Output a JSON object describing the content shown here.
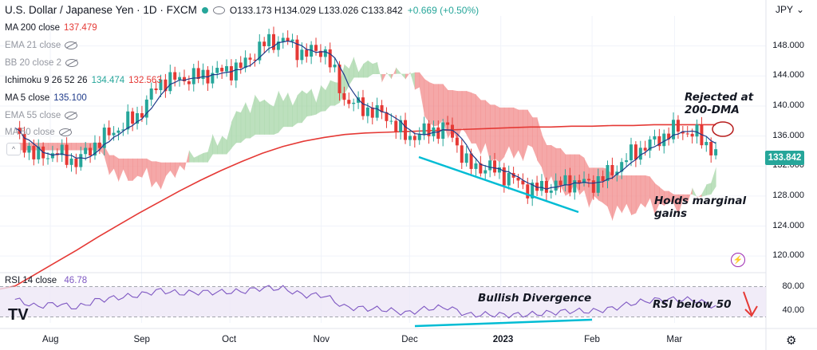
{
  "header": {
    "symbol": "U.S. Dollar / Japanese Yen · 1D · FXCM",
    "ohlc": "O133.173 H134.029 L133.026 C133.842",
    "change": "+0.669 (+0.50%)"
  },
  "indicators": [
    {
      "label": "MA 200 close",
      "value": "137.479",
      "color": "#e53935",
      "hidden": false
    },
    {
      "label": "EMA 21 close",
      "value": "",
      "color": "#9598a1",
      "hidden": true
    },
    {
      "label": "BB 20 close 2",
      "value": "",
      "color": "#9598a1",
      "hidden": true
    },
    {
      "label": "Ichimoku 9 26 52 26",
      "value": "134.474",
      "value2": "132.563",
      "color": "#26a69a",
      "color2": "#e53935",
      "hidden": false
    },
    {
      "label": "MA 5 close",
      "value": "135.100",
      "color": "#1e3a8a",
      "hidden": false
    },
    {
      "label": "EMA 55 close",
      "value": "",
      "color": "#9598a1",
      "hidden": true
    },
    {
      "label": "MA 50 close",
      "value": "",
      "color": "#9598a1",
      "hidden": true
    }
  ],
  "rsi": {
    "label": "RSI 14 close",
    "value": "46.78",
    "color": "#7e57c2"
  },
  "axis": {
    "unit": "JPY",
    "price_ticks": [
      "148.000",
      "144.000",
      "140.000",
      "136.000",
      "132.000",
      "128.000",
      "124.000",
      "120.000"
    ],
    "rsi_ticks": [
      "80.00",
      "40.00"
    ],
    "months": [
      "Aug",
      "Sep",
      "Oct",
      "Nov",
      "Dec",
      "2023",
      "Feb",
      "Mar"
    ],
    "last_price": "133.842"
  },
  "annotations": {
    "rejected": "Rejected at\n200-DMA",
    "holds": "Holds marginal\ngains",
    "bullish": "Bullish Divergence",
    "rsi_below": "RSI below 50"
  },
  "chart_data": {
    "type": "candlestick",
    "title": "U.S. Dollar / Japanese Yen · 1D · FXCM",
    "ylim": [
      118,
      152
    ],
    "rsi_ylim": [
      20,
      90
    ],
    "colors": {
      "up": "#26a69a",
      "down": "#e53935",
      "ma5": "#1e3a8a",
      "ma200": "#e53935",
      "rsi": "#7e57c2",
      "cloud_up": "#a5d6a7",
      "cloud_down": "#f28b8b",
      "trendline": "#00bcd4"
    },
    "x": [
      "2022-07-20",
      "2022-07-27",
      "2022-08-03",
      "2022-08-10",
      "2022-08-17",
      "2022-08-24",
      "2022-08-31",
      "2022-09-07",
      "2022-09-14",
      "2022-09-21",
      "2022-09-28",
      "2022-10-05",
      "2022-10-12",
      "2022-10-19",
      "2022-10-26",
      "2022-11-02",
      "2022-11-09",
      "2022-11-16",
      "2022-11-23",
      "2022-11-30",
      "2022-12-07",
      "2022-12-14",
      "2022-12-21",
      "2022-12-28",
      "2023-01-04",
      "2023-01-11",
      "2023-01-18",
      "2023-01-25",
      "2023-02-01",
      "2023-02-08",
      "2023-02-15",
      "2023-02-22",
      "2023-03-01",
      "2023-03-08",
      "2023-03-15"
    ],
    "close": [
      136.5,
      133.2,
      133.8,
      132.5,
      135.2,
      137.0,
      138.8,
      143.2,
      143.6,
      144.0,
      144.6,
      145.2,
      148.2,
      148.9,
      146.9,
      147.6,
      140.8,
      139.6,
      138.7,
      135.8,
      136.6,
      137.1,
      131.9,
      131.8,
      130.5,
      128.8,
      129.3,
      129.9,
      129.6,
      131.3,
      133.8,
      135.2,
      136.9,
      136.3,
      133.8
    ],
    "ma200": [
      116.0,
      117.6,
      119.2,
      120.8,
      122.5,
      124.1,
      125.7,
      127.2,
      128.7,
      130.1,
      131.4,
      132.6,
      133.7,
      134.6,
      135.3,
      135.8,
      136.2,
      136.4,
      136.5,
      136.6,
      136.7,
      136.8,
      136.9,
      137.0,
      137.1,
      137.2,
      137.2,
      137.3,
      137.3,
      137.4,
      137.4,
      137.5,
      137.5,
      137.5,
      137.5
    ],
    "rsi": [
      59,
      47,
      52,
      45,
      58,
      62,
      66,
      74,
      69,
      71,
      71,
      72,
      78,
      77,
      66,
      66,
      46,
      44,
      42,
      36,
      44,
      46,
      33,
      34,
      33,
      34,
      37,
      40,
      39,
      44,
      53,
      58,
      59,
      58,
      47
    ]
  }
}
